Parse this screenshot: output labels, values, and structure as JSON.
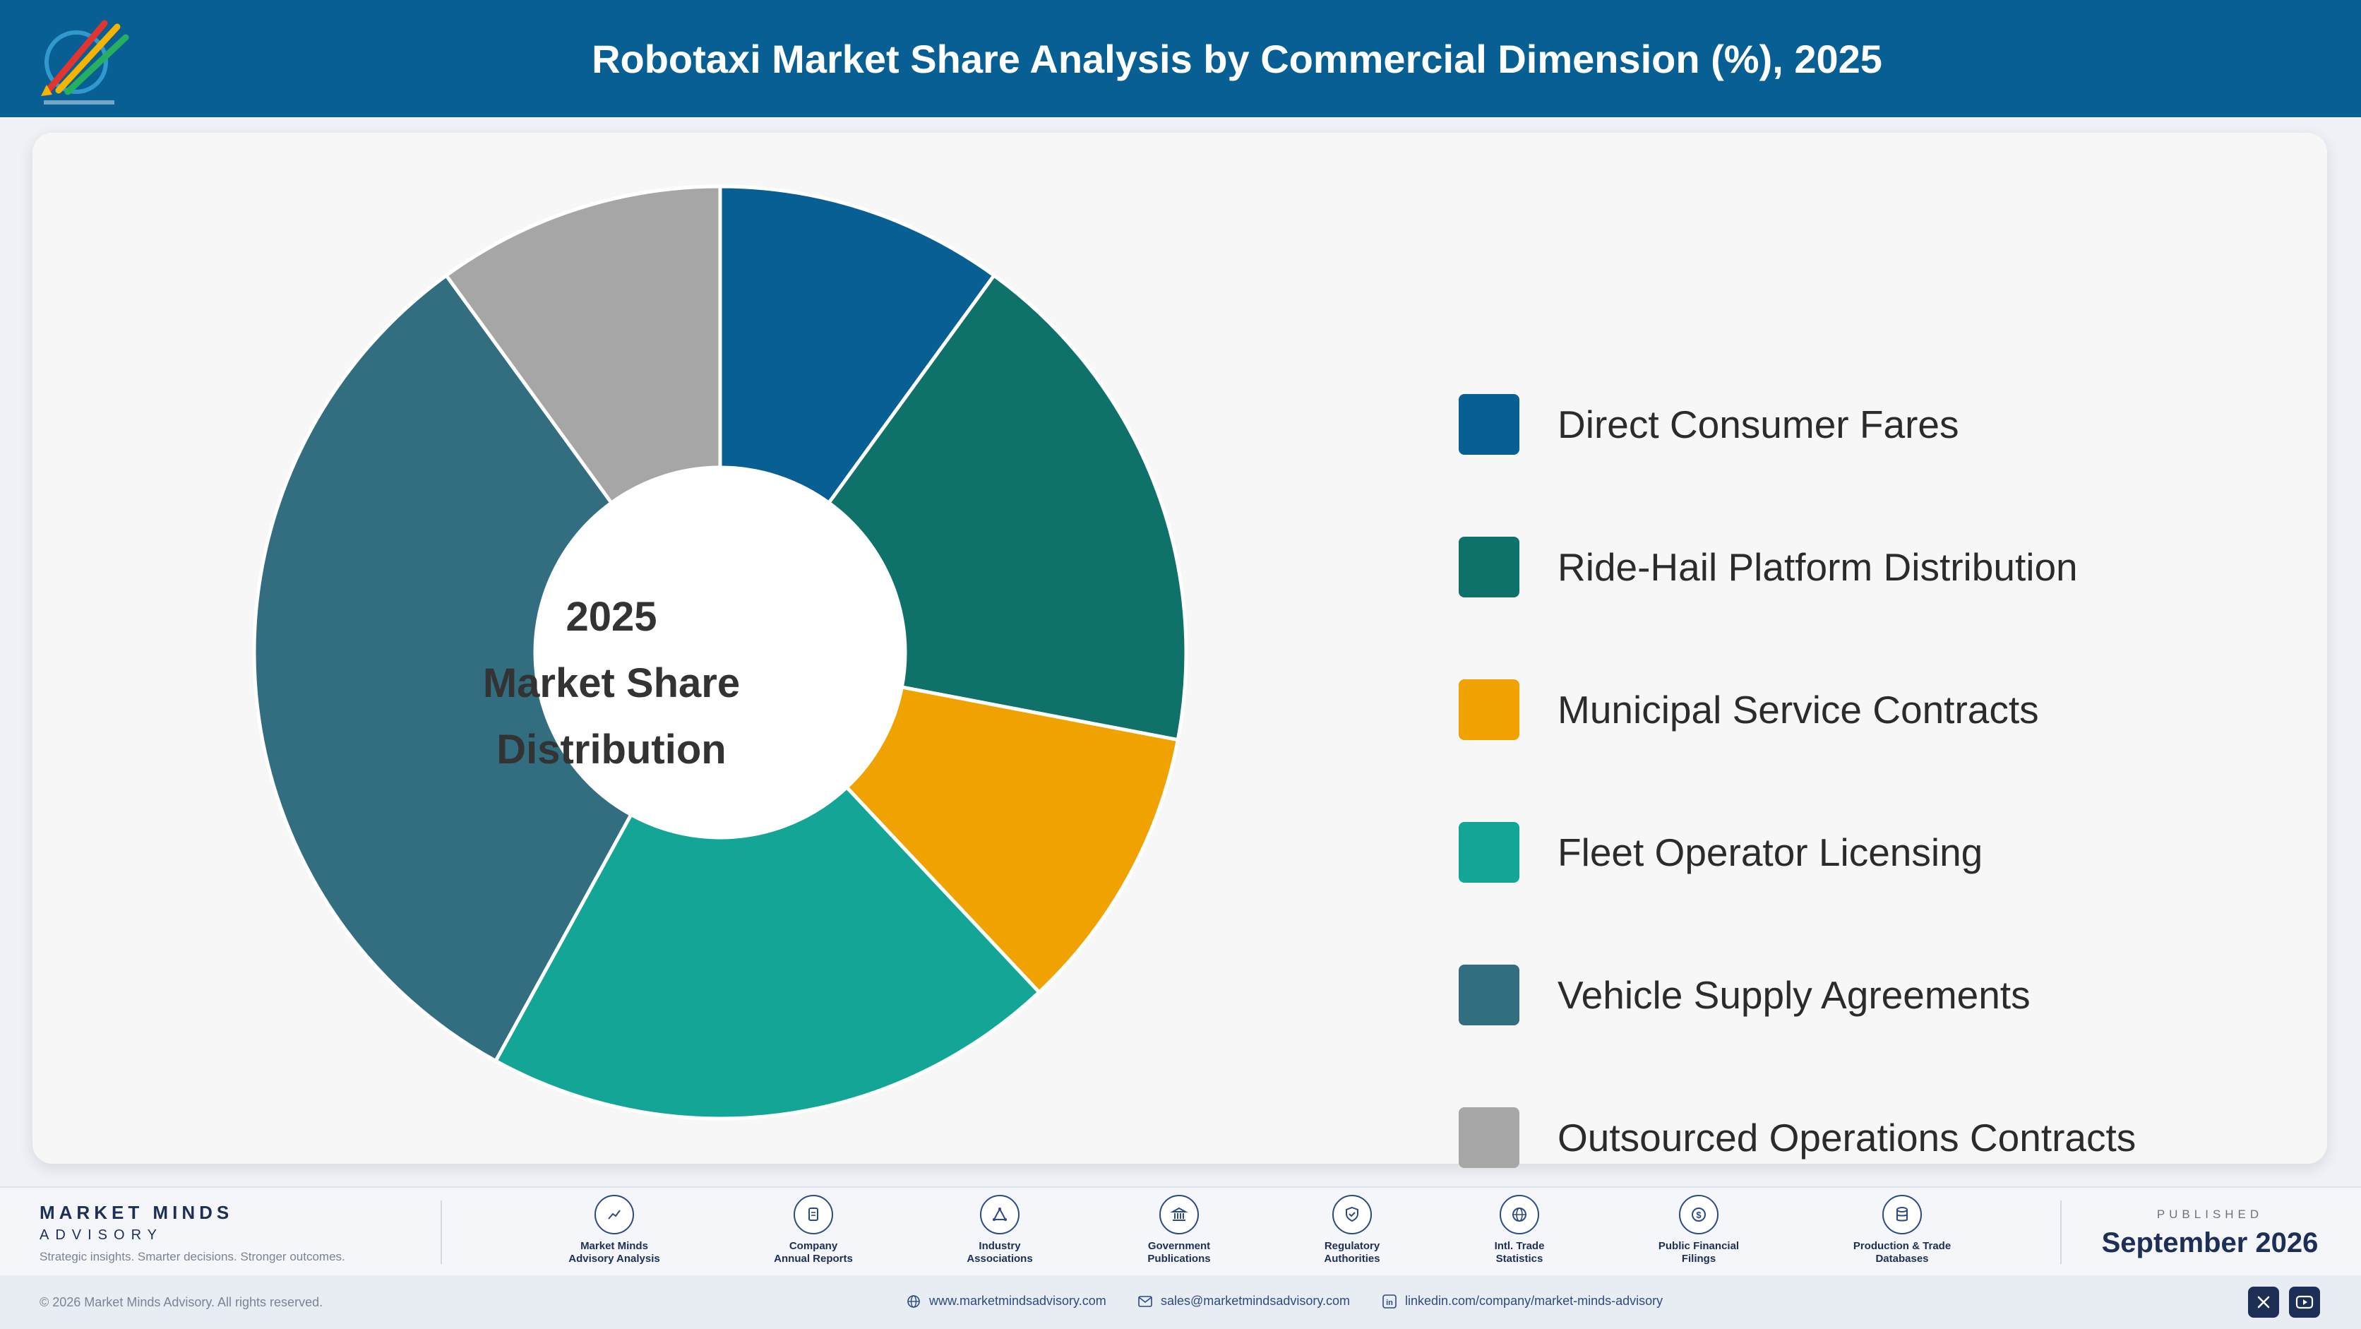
{
  "header": {
    "title": "Robotaxi Market Share Analysis by Commercial Dimension (%), 2025",
    "logo_icon": "market-minds-logo-icon"
  },
  "chart_data": {
    "type": "pie",
    "donut": true,
    "title": "Robotaxi Market Share Analysis by Commercial Dimension (%), 2025",
    "center_label": [
      "2025",
      "Market Share",
      "Distribution"
    ],
    "legend_position": "right",
    "slices": [
      {
        "label": "Direct Consumer Fares",
        "value": 10,
        "color": "#075f93"
      },
      {
        "label": "Ride-Hail Platform Distribution",
        "value": 18,
        "color": "#0e726b"
      },
      {
        "label": "Municipal Service Contracts",
        "value": 10,
        "color": "#f0a300"
      },
      {
        "label": "Fleet Operator Licensing",
        "value": 20,
        "color": "#13a595"
      },
      {
        "label": "Vehicle Supply Agreements",
        "value": 32,
        "color": "#336d80"
      },
      {
        "label": "Outsourced Operations Contracts",
        "value": 10,
        "color": "#a6a6a6"
      }
    ]
  },
  "footer": {
    "brand_name": "MARKET MINDS",
    "brand_sub": "ADVISORY",
    "brand_tagline": "Strategic insights. Smarter decisions. Stronger outcomes.",
    "sources": [
      {
        "label": "Market Minds\nAdvisory Analysis",
        "icon": "trend-chart-icon"
      },
      {
        "label": "Company\nAnnual Reports",
        "icon": "document-icon"
      },
      {
        "label": "Industry\nAssociations",
        "icon": "network-icon"
      },
      {
        "label": "Government\nPublications",
        "icon": "government-building-icon"
      },
      {
        "label": "Regulatory\nAuthorities",
        "icon": "shield-check-icon"
      },
      {
        "label": "Intl. Trade\nStatistics",
        "icon": "globe-icon"
      },
      {
        "label": "Public Financial\nFilings",
        "icon": "dollar-coin-icon"
      },
      {
        "label": "Production & Trade\nDatabases",
        "icon": "database-icon"
      }
    ],
    "published_label": "PUBLISHED",
    "published_date": "September 2026"
  },
  "bottom_bar": {
    "copyright": "© 2026 Market Minds Advisory. All rights reserved.",
    "website": "www.marketmindsadvisory.com",
    "email": "sales@marketmindsadvisory.com",
    "linkedin": "linkedin.com/company/market-minds-advisory",
    "social": [
      "x-icon",
      "youtube-icon"
    ]
  }
}
